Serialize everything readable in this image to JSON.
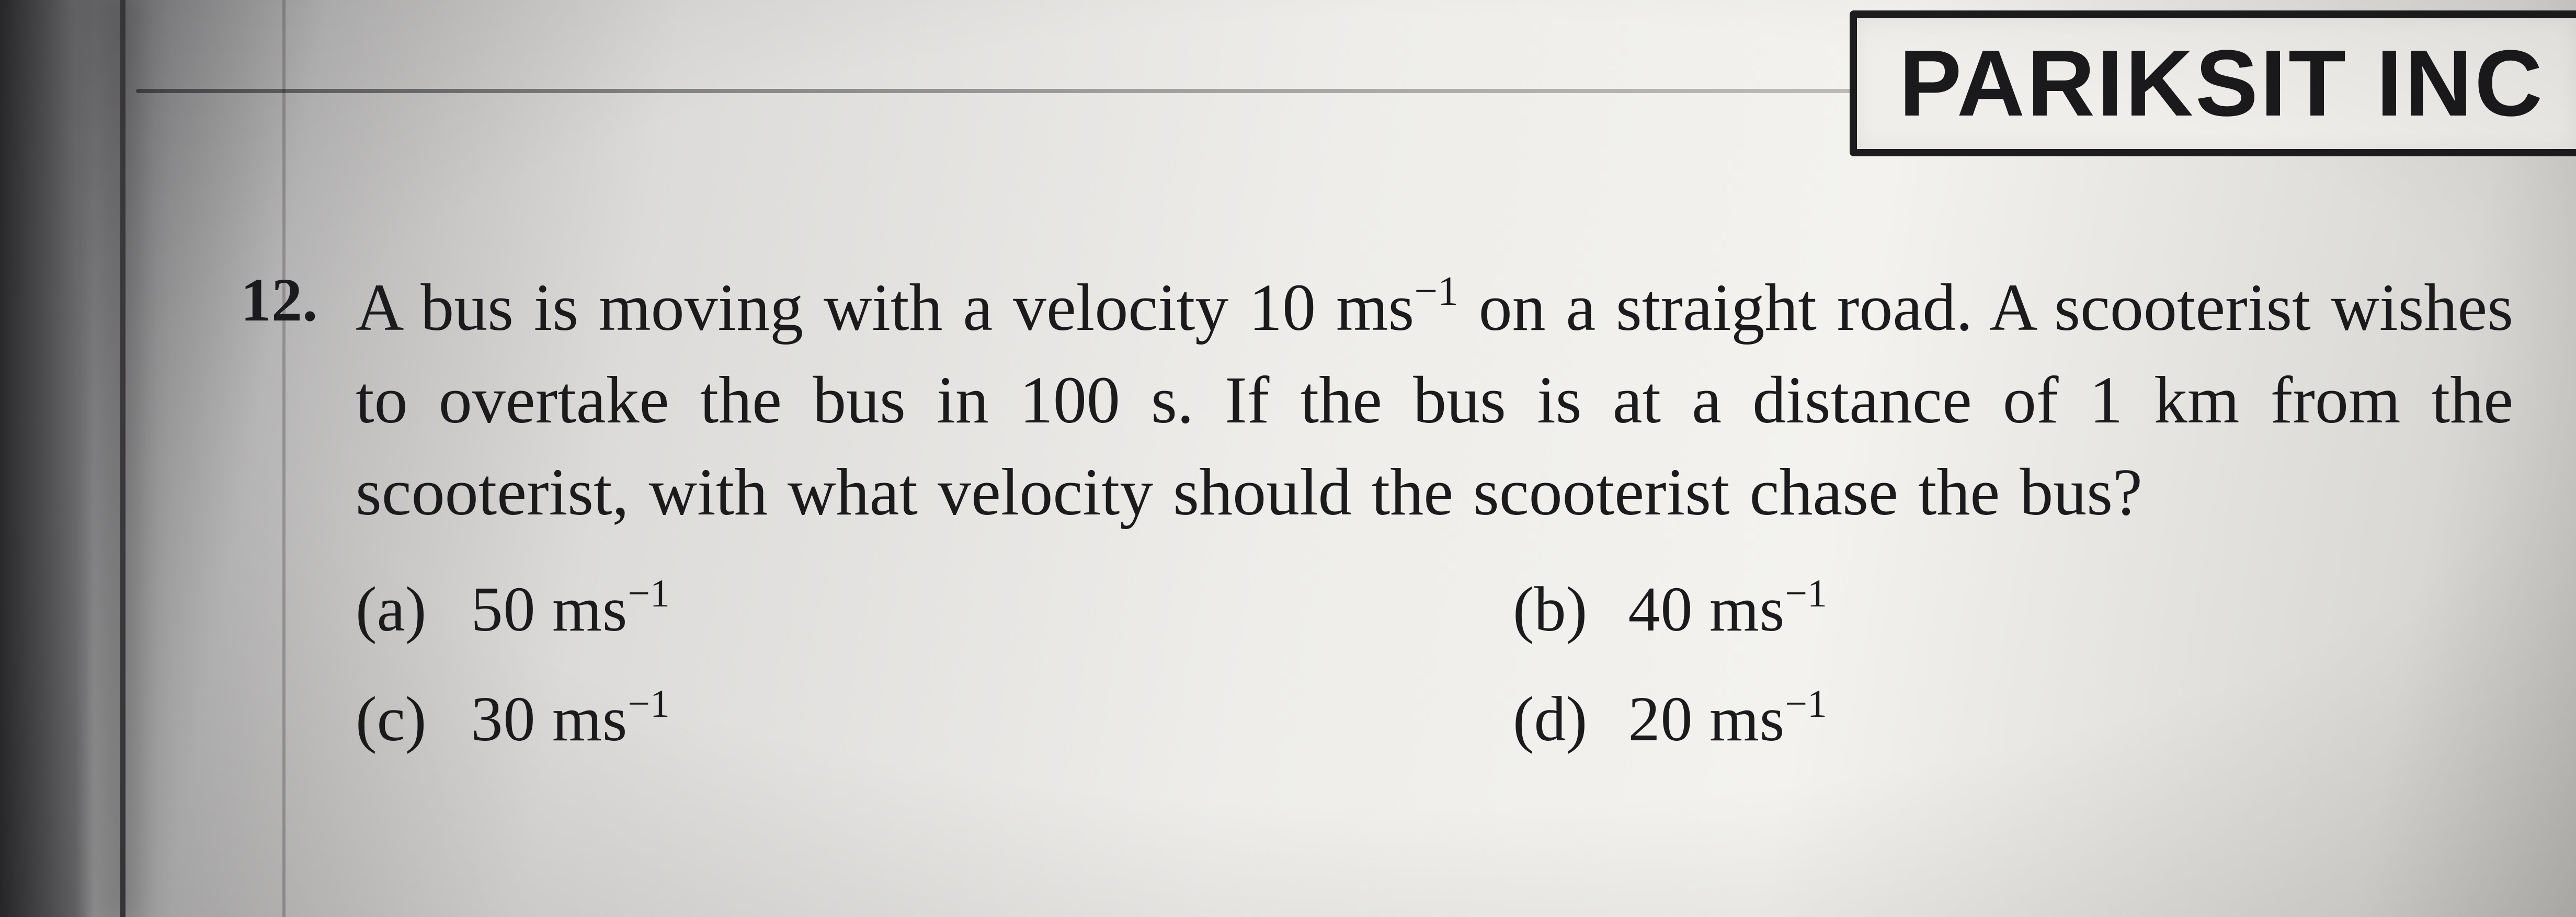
{
  "header": {
    "brand": "PARIKSIT INC"
  },
  "question": {
    "number": "12.",
    "text_parts": {
      "p1": "A bus is moving with a velocity 10 ms",
      "p1_sup": "−1",
      "p2": " on a straight road. A scooterist wishes to overtake the bus in 100 s. If the bus is at a distance of 1 km from the scooterist, with what velocity should the scooterist chase the bus?"
    }
  },
  "options": {
    "a": {
      "label": "(a)",
      "value": "50 ms",
      "sup": "−1"
    },
    "b": {
      "label": "(b)",
      "value": "40 ms",
      "sup": "−1"
    },
    "c": {
      "label": "(c)",
      "value": "30 ms",
      "sup": "−1"
    },
    "d": {
      "label": "(d)",
      "value": "20 ms",
      "sup": "−1"
    }
  },
  "colors": {
    "ink": "#1a1a1c",
    "paper": "#efeeea",
    "shadow": "#2b2a2c"
  }
}
